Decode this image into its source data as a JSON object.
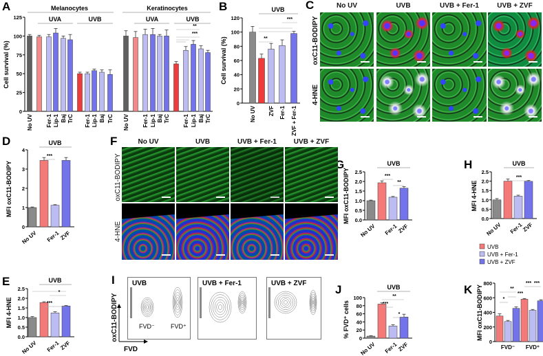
{
  "panels": {
    "A": "A",
    "B": "B",
    "C": "C",
    "D": "D",
    "E": "E",
    "F": "F",
    "G": "G",
    "H": "H",
    "I": "I",
    "J": "J",
    "K": "K"
  },
  "palette": {
    "dark_gray": "#5f5f5f",
    "gray": "#8a8a8a",
    "uva_red": "#f28a8a",
    "uvb_red": "#ee3b3b",
    "salmon": "#f47a7a",
    "light_purple": "#bcbcf2",
    "blue": "#7373ea"
  },
  "panel_C": {
    "columns": [
      "No UV",
      "UVB",
      "UVB + Fer-1",
      "UVB + ZVF"
    ],
    "rows": [
      "oxC11-BODIPY",
      "4-HNE"
    ]
  },
  "panel_F": {
    "columns": [
      "No UV",
      "UVB",
      "UVB + Fer-1",
      "UVB + ZVF"
    ],
    "rows": [
      "oxC11-BODIPY",
      "4-HNE"
    ]
  },
  "panel_I": {
    "plots": [
      "UVB",
      "UVB + Fer-1",
      "UVB + ZVF"
    ],
    "gate_labels": [
      "FVD⁻",
      "FVD⁺"
    ],
    "ylabel": "oxC11-BODIPY",
    "xlabel": "FVD"
  },
  "chart_data": [
    {
      "id": "A",
      "type": "bar",
      "ylabel": "Cell survival (%)",
      "ylim": [
        0,
        125
      ],
      "yticks": [
        0,
        25,
        50,
        75,
        100,
        125
      ],
      "categories": [
        "No UV",
        "",
        "Fer-1",
        "Lip-1",
        "Baj",
        "TrC",
        "",
        "Fer-1",
        "Lip-1",
        "Baj",
        "TrC",
        "No UV",
        "",
        "Fer-1",
        "Lip-1",
        "Baj",
        "TrC",
        "",
        "Fer-1",
        "Lip-1",
        "Baj",
        "TrC"
      ],
      "values": [
        100,
        99,
        99,
        104,
        97,
        95,
        50,
        50,
        54,
        52,
        49,
        100,
        98,
        102,
        102,
        100,
        100,
        63,
        81,
        89,
        83,
        78
      ],
      "errors": [
        2,
        2,
        3,
        6,
        3,
        7,
        2,
        2,
        2,
        3,
        6,
        7,
        8,
        7,
        8,
        2,
        8,
        3,
        5,
        5,
        4,
        3
      ],
      "colors": [
        "dark_gray",
        "uva_red",
        "light_purple",
        "blue",
        "light_purple",
        "blue",
        "uvb_red",
        "light_purple",
        "blue",
        "light_purple",
        "blue",
        "dark_gray",
        "uva_red",
        "light_purple",
        "blue",
        "light_purple",
        "blue",
        "uvb_red",
        "light_purple",
        "blue",
        "light_purple",
        "blue"
      ],
      "groups": [
        "Melanocytes",
        "Keratinocytes",
        "UVA",
        "UVB",
        "UVA",
        "UVB"
      ],
      "annotations": [
        "**",
        "***"
      ]
    },
    {
      "id": "B",
      "type": "bar",
      "ylabel": "Cell survival (%)",
      "ylim": [
        0,
        120
      ],
      "yticks": [
        0,
        20,
        40,
        60,
        80,
        100,
        120
      ],
      "categories": [
        "No UV",
        "",
        "ZVF",
        "Fer-1",
        "ZVF + Fer-1"
      ],
      "values": [
        100,
        63,
        76,
        81,
        98
      ],
      "errors": [
        8,
        6,
        8,
        8,
        3
      ],
      "colors": [
        "gray",
        "uvb_red",
        "light_purple",
        "light_purple",
        "blue"
      ],
      "groups": [
        "UVB"
      ],
      "annotations": [
        "**",
        "***"
      ]
    },
    {
      "id": "D",
      "type": "bar",
      "ylabel": "MFI oxC11-BODIPY",
      "ylim": [
        0,
        4
      ],
      "yticks": [
        0,
        1,
        2,
        3,
        4
      ],
      "categories": [
        "No UV",
        "",
        "Fer-1",
        "ZVF"
      ],
      "values": [
        1.0,
        3.45,
        1.12,
        3.45
      ],
      "errors": [
        0.03,
        0.15,
        0.03,
        0.15
      ],
      "colors": [
        "gray",
        "salmon",
        "light_purple",
        "blue"
      ],
      "groups": [
        "UVB"
      ],
      "annotations": [
        "***"
      ]
    },
    {
      "id": "E",
      "type": "bar",
      "ylabel": "MFI 4-HNE",
      "ylim": [
        0,
        2.5
      ],
      "yticks": [
        "0.0",
        "0.5",
        "1.0",
        "1.5",
        "2.0",
        "2.5"
      ],
      "categories": [
        "No UV",
        "",
        "Fer-1",
        "ZVF"
      ],
      "values": [
        1.0,
        1.78,
        1.24,
        1.6
      ],
      "errors": [
        0.05,
        0.04,
        0.06,
        0.02
      ],
      "colors": [
        "gray",
        "salmon",
        "light_purple",
        "blue"
      ],
      "groups": [
        "UVB"
      ],
      "annotations": [
        "*",
        "***"
      ]
    },
    {
      "id": "G",
      "type": "bar",
      "ylabel": "MFI oxC11-BODIPY",
      "ylim": [
        0,
        2.5
      ],
      "yticks": [
        "0.0",
        "0.5",
        "1.0",
        "1.5",
        "2.0",
        "2.5"
      ],
      "categories": [
        "No UV",
        "",
        "Fer-1",
        "ZVF"
      ],
      "values": [
        1.0,
        1.93,
        1.18,
        1.65
      ],
      "errors": [
        0.03,
        0.1,
        0.04,
        0.08
      ],
      "colors": [
        "gray",
        "salmon",
        "light_purple",
        "blue"
      ],
      "groups": [
        "UVB"
      ],
      "annotations": [
        "***",
        "**"
      ]
    },
    {
      "id": "H",
      "type": "bar",
      "ylabel": "MFI 4-HNE",
      "ylim": [
        0,
        2.5
      ],
      "yticks": [
        "0.0",
        "0.5",
        "1.0",
        "1.5",
        "2.0",
        "2.5"
      ],
      "categories": [
        "No UV",
        "",
        "Fer-1",
        "ZVF"
      ],
      "values": [
        1.0,
        2.0,
        1.2,
        1.99
      ],
      "errors": [
        0.07,
        0.12,
        0.05,
        0.05
      ],
      "colors": [
        "gray",
        "salmon",
        "light_purple",
        "blue"
      ],
      "groups": [
        "UVB"
      ],
      "annotations": [
        "***"
      ]
    },
    {
      "id": "J",
      "type": "bar",
      "ylabel": "% FVD⁺ cells",
      "ylim": [
        0,
        100
      ],
      "yticks": [
        0,
        20,
        40,
        60,
        80,
        100
      ],
      "categories": [
        "No UV",
        "",
        "Fer-1",
        "ZVF"
      ],
      "values": [
        5,
        84,
        30,
        52
      ],
      "errors": [
        1,
        3,
        3,
        7
      ],
      "colors": [
        "gray",
        "salmon",
        "light_purple",
        "blue"
      ],
      "groups": [
        "UVB"
      ],
      "annotations": [
        "***",
        "**",
        "*"
      ]
    },
    {
      "id": "K",
      "type": "bar",
      "ylabel": "MFI oxC11-BODIPY",
      "ylim": [
        0,
        800
      ],
      "yticks": [
        0,
        200,
        400,
        600,
        800
      ],
      "categories": [
        "FVD⁻",
        "FVD⁺"
      ],
      "series": [
        {
          "name": "UVB",
          "values": [
            350,
            580
          ],
          "errors": [
            30,
            10
          ],
          "color": "salmon"
        },
        {
          "name": "UVB + Fer-1",
          "values": [
            275,
            428
          ],
          "errors": [
            15,
            12
          ],
          "color": "light_purple"
        },
        {
          "name": "UVB + ZVF",
          "values": [
            455,
            558
          ],
          "errors": [
            20,
            15
          ],
          "color": "blue"
        }
      ],
      "legend": "top-left",
      "annotations": [
        "*",
        "**",
        "***",
        "***",
        "***"
      ]
    }
  ]
}
